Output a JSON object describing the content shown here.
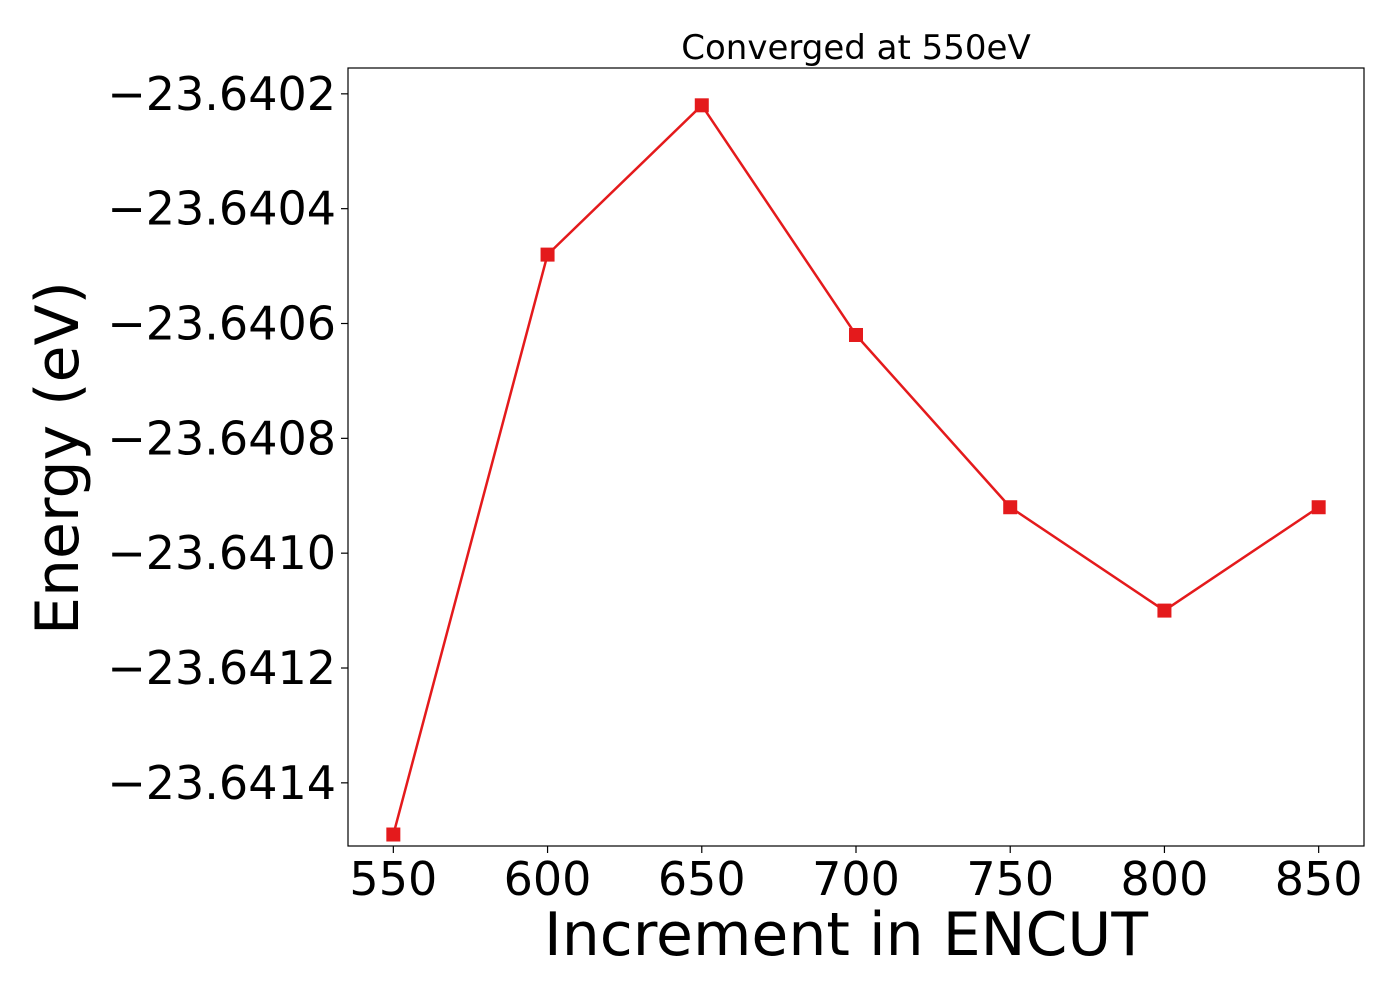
{
  "chart_data": {
    "type": "line",
    "title": "Converged at 550eV",
    "xlabel": "Increment in ENCUT",
    "ylabel": "Energy (eV)",
    "x": [
      550,
      600,
      650,
      700,
      750,
      800,
      850
    ],
    "series": [
      {
        "values": [
          -23.64149,
          -23.64048,
          -23.64022,
          -23.64062,
          -23.64092,
          -23.6411,
          -23.64092
        ],
        "color": "#e41a1c",
        "marker": "square"
      }
    ],
    "xticks": [
      550,
      600,
      650,
      700,
      750,
      800,
      850
    ],
    "xtick_labels": [
      "550",
      "600",
      "650",
      "700",
      "750",
      "800",
      "850"
    ],
    "yticks": [
      -23.6402,
      -23.6404,
      -23.6406,
      -23.6408,
      -23.641,
      -23.6412,
      -23.6414
    ],
    "ytick_labels": [
      "−23.6402",
      "−23.6404",
      "−23.6406",
      "−23.6408",
      "−23.6410",
      "−23.6412",
      "−23.6414"
    ],
    "xlim": [
      535.3,
      864.7
    ],
    "ylim": [
      -23.64151,
      -23.640155
    ],
    "grid": false,
    "legend": false
  }
}
